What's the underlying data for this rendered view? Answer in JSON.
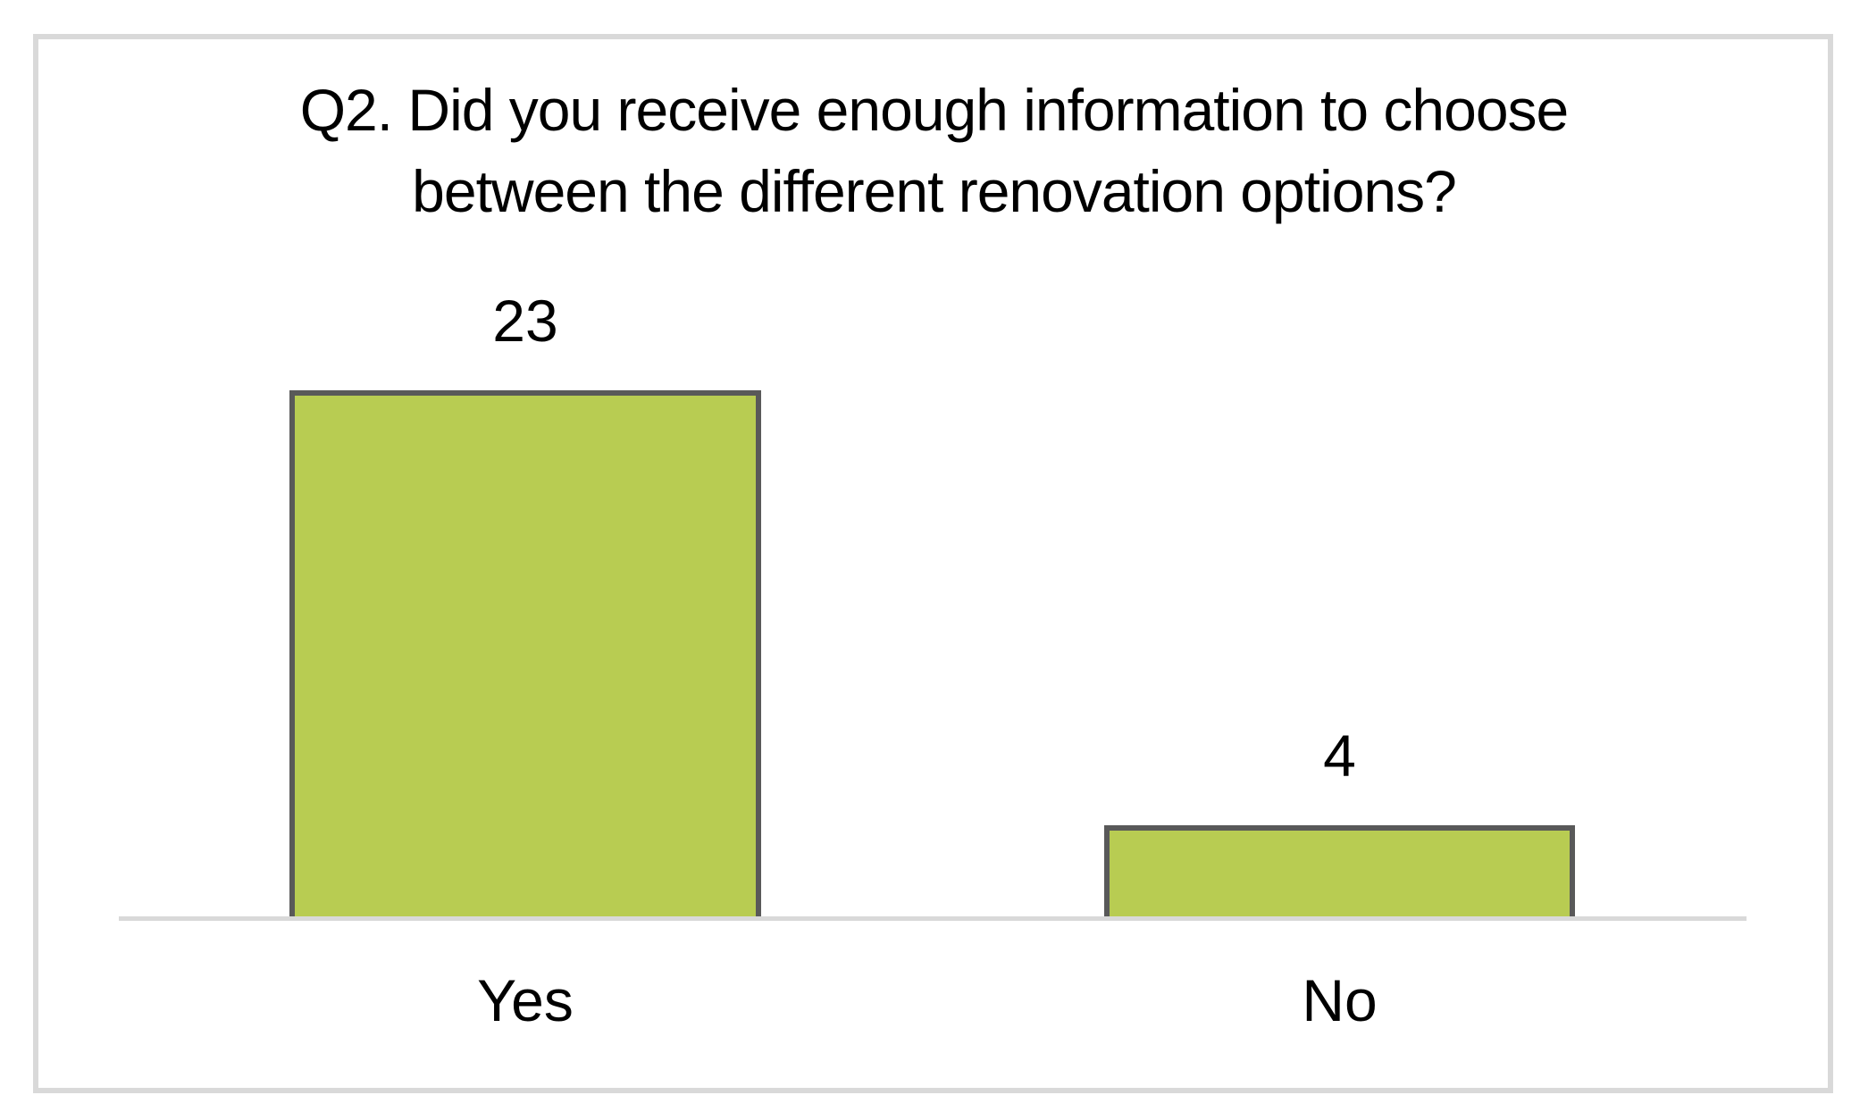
{
  "chart_data": {
    "type": "bar",
    "title": "Q2. Did you receive enough information to choose between the different renovation options?",
    "title_lines": [
      "Q2. Did you receive enough information to choose",
      "between the different renovation options?"
    ],
    "categories": [
      "Yes",
      "No"
    ],
    "values": [
      23,
      4
    ],
    "xlabel": "",
    "ylabel": "",
    "ylim": [
      0,
      23
    ],
    "grid": false,
    "legend": false,
    "data_labels_shown": true,
    "colors": {
      "bar_fill": "#B8CC52",
      "bar_border": "#595959",
      "axis_line": "#D9D9D9",
      "frame_border": "#D9D9D9",
      "text": "#000000",
      "background": "#FFFFFF"
    }
  }
}
